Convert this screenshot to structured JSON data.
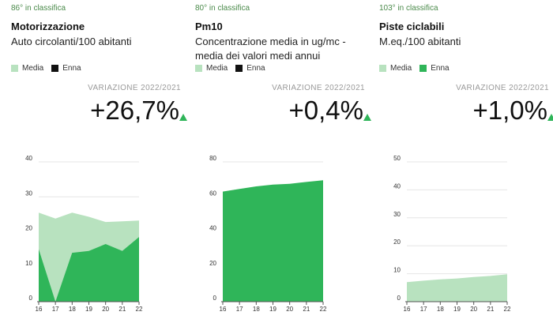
{
  "colors": {
    "media": "#b8e2bf",
    "city": "#2fb559",
    "arrow": "#2fb559"
  },
  "panels": [
    {
      "rank": "86° in classifica",
      "title": "Motorizzazione",
      "description": "Auto circolanti/100 abitanti",
      "legend": {
        "media": "Media",
        "city": "Enna"
      },
      "variation_label": "VARIAZIONE 2022/2021",
      "variation_value": "+26,7%"
    },
    {
      "rank": "80° in classifica",
      "title": "Pm10",
      "description": "Concentrazione media in ug/mc - media dei valori medi annui",
      "legend": {
        "media": "Media",
        "city": "Enna"
      },
      "variation_label": "VARIAZIONE 2022/2021",
      "variation_value": "+0,4%"
    },
    {
      "rank": "103° in classifica",
      "title": "Piste ciclabili",
      "description": "M.eq./100 abitanti",
      "legend": {
        "media": "Media",
        "city": "Enna"
      },
      "variation_label": "VARIAZIONE 2022/2021",
      "variation_value": "+1,0%"
    }
  ],
  "chart_data": [
    {
      "type": "area",
      "x": [
        "16",
        "17",
        "18",
        "19",
        "20",
        "21",
        "22"
      ],
      "yticks": [
        0,
        10,
        20,
        30,
        40
      ],
      "ylim": [
        0,
        40
      ],
      "series": [
        {
          "name": "Media",
          "values": [
            25.5,
            23.8,
            25.5,
            24.3,
            22.8,
            23.0,
            23.2
          ]
        },
        {
          "name": "Enna",
          "values": [
            15,
            0,
            14,
            14.5,
            16.5,
            14.5,
            18.5
          ]
        }
      ]
    },
    {
      "type": "area",
      "x": [
        "16",
        "17",
        "18",
        "19",
        "20",
        "21",
        "22"
      ],
      "yticks": [
        0,
        20,
        40,
        60,
        80
      ],
      "ylim": [
        0,
        80
      ],
      "series": [
        {
          "name": "Media",
          "values": [
            63,
            64.5,
            65.5,
            66,
            66.5,
            67,
            67.5
          ]
        },
        {
          "name": "Enna",
          "values": [
            63,
            64.5,
            66,
            67,
            67.5,
            68.5,
            69.5
          ]
        }
      ]
    },
    {
      "type": "area",
      "x": [
        "16",
        "17",
        "18",
        "19",
        "20",
        "21",
        "22"
      ],
      "yticks": [
        0,
        10,
        20,
        30,
        40,
        50
      ],
      "ylim": [
        0,
        50
      ],
      "series": [
        {
          "name": "Media",
          "values": [
            7,
            7.5,
            8,
            8.3,
            8.8,
            9.2,
            9.8
          ]
        },
        {
          "name": "Enna",
          "values": [
            0,
            0,
            0,
            0,
            0,
            0,
            0
          ]
        }
      ]
    }
  ]
}
